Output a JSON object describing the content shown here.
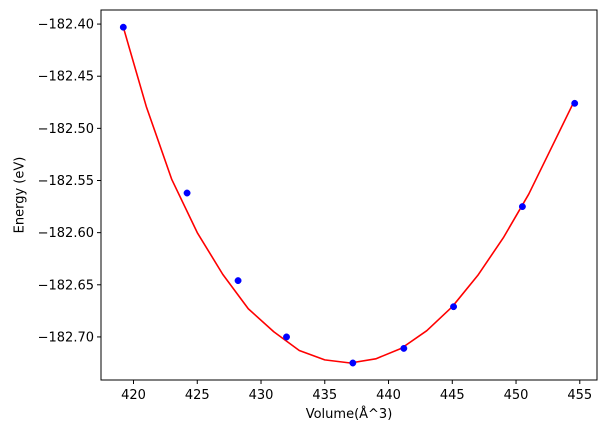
{
  "chart_data": {
    "type": "scatter",
    "title": "",
    "xlabel": "Volume(Å^3)",
    "ylabel": "Energy (eV)",
    "xlim": [
      417.45,
      456.35
    ],
    "ylim": [
      -182.7413,
      -182.3865
    ],
    "x_ticks": [
      420,
      425,
      430,
      435,
      440,
      445,
      450,
      455
    ],
    "y_ticks": [
      -182.7,
      -182.65,
      -182.6,
      -182.55,
      -182.5,
      -182.45,
      -182.4
    ],
    "x_tick_labels": [
      "420",
      "425",
      "430",
      "435",
      "440",
      "445",
      "450",
      "455"
    ],
    "y_tick_labels": [
      "−182.70",
      "−182.65",
      "−182.60",
      "−182.55",
      "−182.50",
      "−182.45",
      "−182.40"
    ],
    "grid": false,
    "series": [
      {
        "kind": "points",
        "color": "#0000ff",
        "x": [
          419.2,
          424.2,
          428.2,
          432.0,
          437.2,
          441.2,
          445.1,
          450.5,
          454.6
        ],
        "y": [
          -182.403,
          -182.562,
          -182.646,
          -182.7,
          -182.725,
          -182.711,
          -182.671,
          -182.575,
          -182.476
        ]
      },
      {
        "kind": "fit",
        "color": "#ff0000",
        "x": [
          419.2,
          421.0,
          423.0,
          425.0,
          427.0,
          429.0,
          431.0,
          433.0,
          435.0,
          437.0,
          439.0,
          441.0,
          443.0,
          445.0,
          447.0,
          449.0,
          451.0,
          453.0,
          454.6
        ],
        "y": [
          -182.403,
          -182.479,
          -182.549,
          -182.6,
          -182.64,
          -182.673,
          -182.695,
          -182.713,
          -182.722,
          -182.725,
          -182.721,
          -182.711,
          -182.694,
          -182.671,
          -182.641,
          -182.605,
          -182.563,
          -182.513,
          -182.473
        ]
      }
    ]
  }
}
